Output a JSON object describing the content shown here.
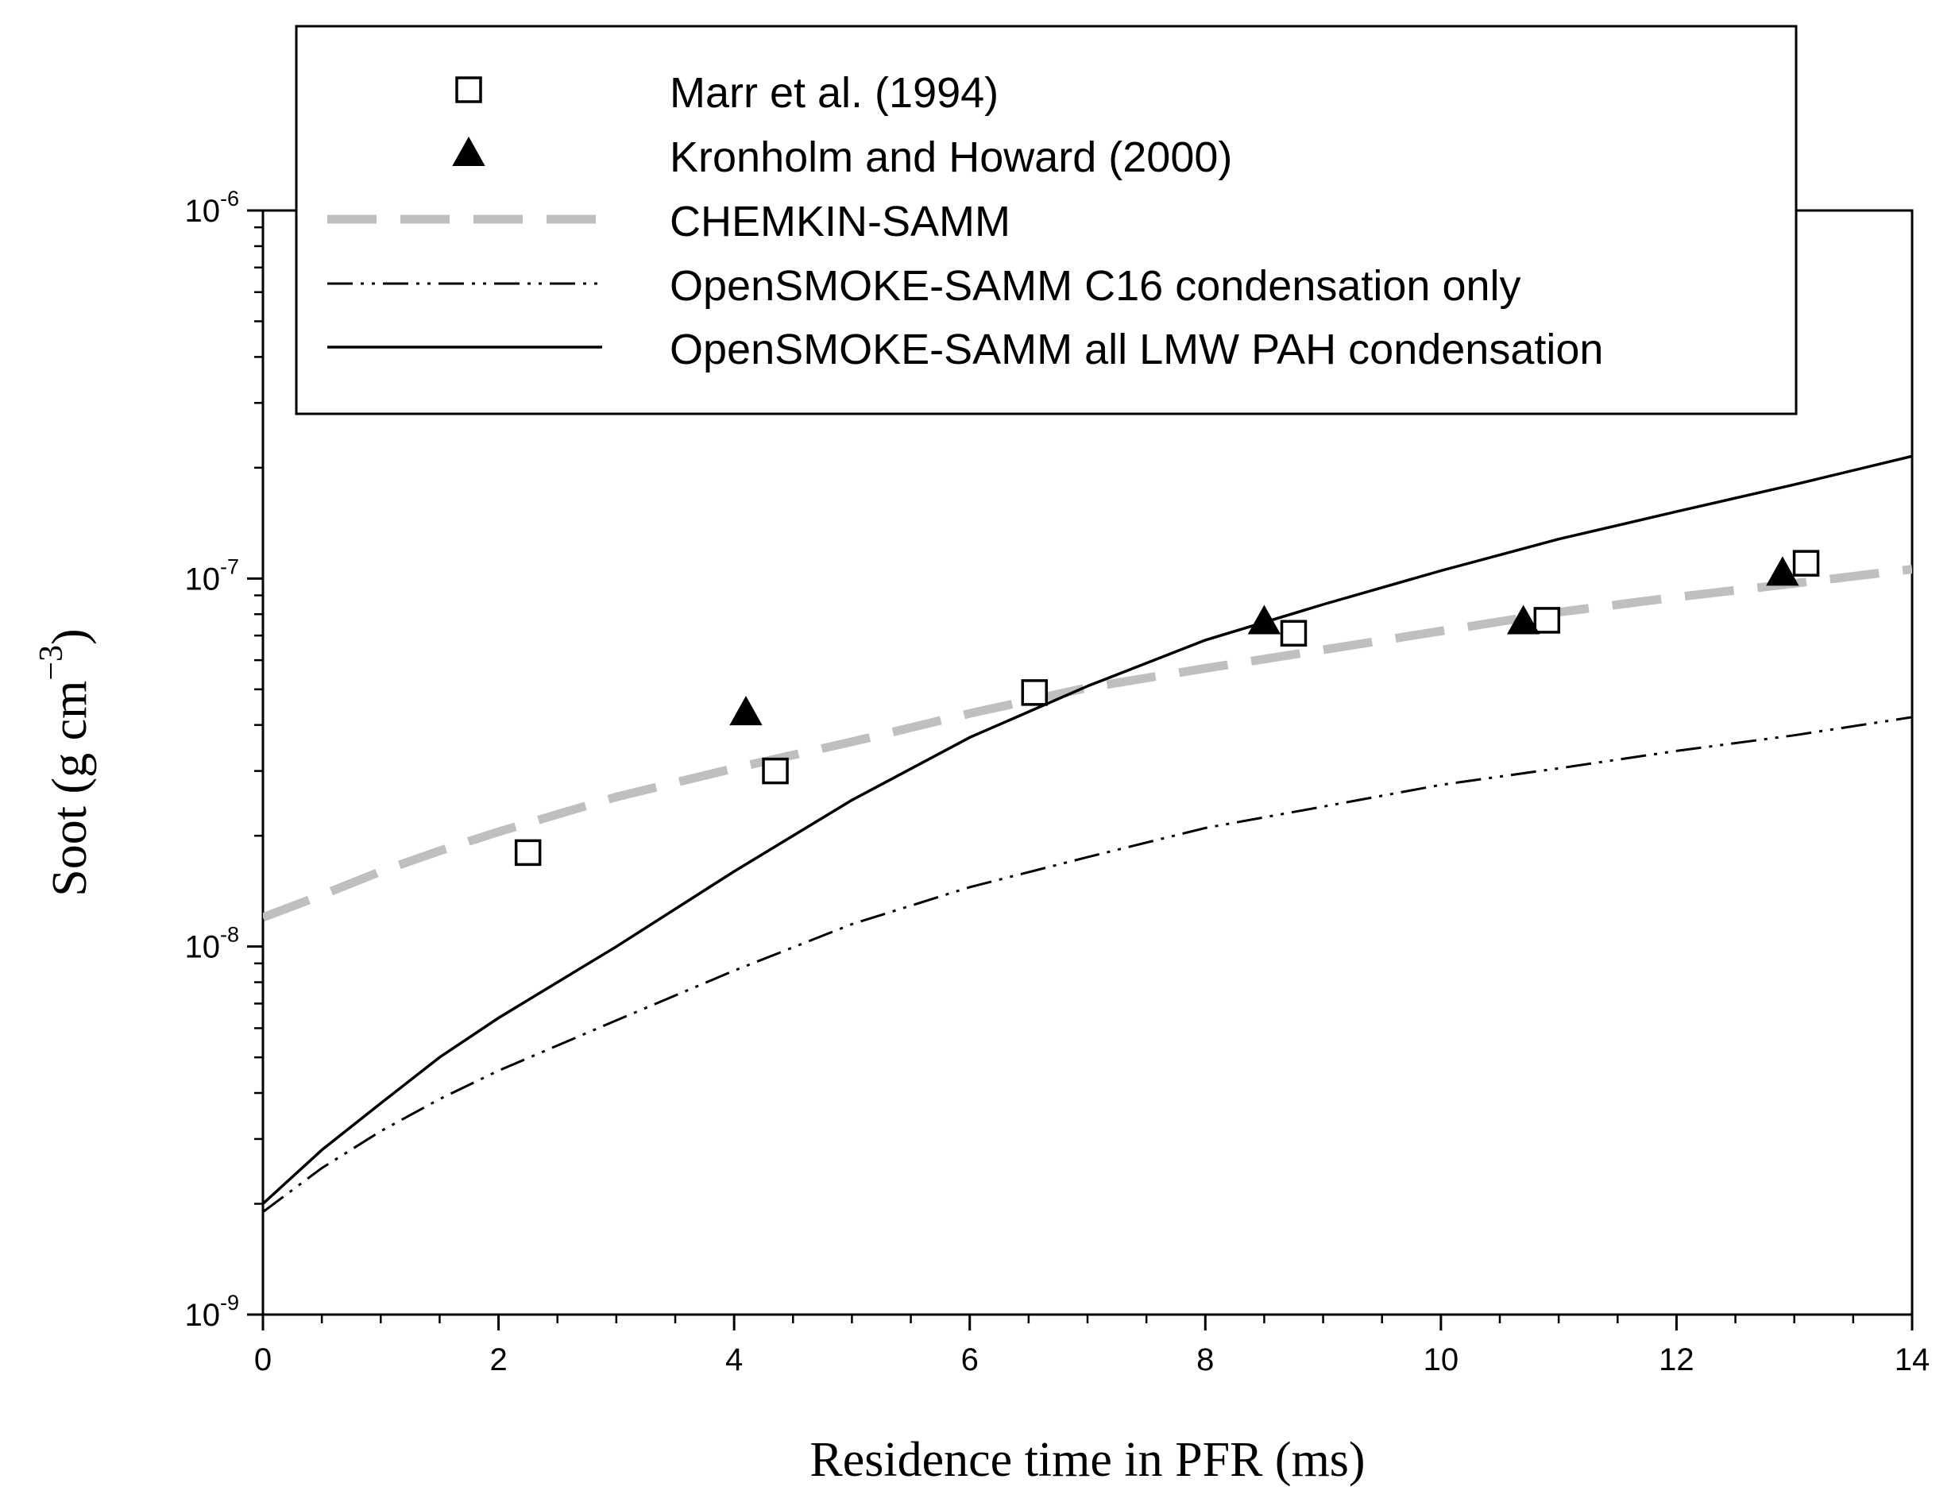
{
  "chart_data": {
    "type": "scatter",
    "xlabel": "Residence time in PFR (ms)",
    "ylabel": "Soot (g cm",
    "ylabel_exponent": "−3",
    "ylabel_close": ")",
    "xlim": [
      0,
      14
    ],
    "ylim": [
      1e-09,
      1e-06
    ],
    "yscale": "log",
    "x_ticks": [
      0,
      2,
      4,
      6,
      8,
      10,
      12,
      14
    ],
    "x_tick_labels": [
      "0",
      "2",
      "4",
      "6",
      "8",
      "10",
      "12",
      "14"
    ],
    "y_ticks": [
      1e-09,
      1e-08,
      1e-07,
      1e-06
    ],
    "y_tick_labels": [
      {
        "base": "10",
        "exp": "-9"
      },
      {
        "base": "10",
        "exp": "-8"
      },
      {
        "base": "10",
        "exp": "-7"
      },
      {
        "base": "10",
        "exp": "-6"
      }
    ],
    "legend_position": "top",
    "series": [
      {
        "name": "Marr et al. (1994)",
        "kind": "markers",
        "marker": "open-square",
        "color": "#000000",
        "x": [
          2.25,
          4.35,
          6.55,
          8.75,
          10.9,
          13.1
        ],
        "y": [
          1.8e-08,
          3e-08,
          4.9e-08,
          7.1e-08,
          7.7e-08,
          1.1e-07
        ]
      },
      {
        "name": "Kronholm and Howard (2000)",
        "kind": "markers",
        "marker": "filled-triangle",
        "color": "#000000",
        "x": [
          4.1,
          8.5,
          10.7,
          12.9
        ],
        "y": [
          4.3e-08,
          7.6e-08,
          7.6e-08,
          1.03e-07
        ]
      },
      {
        "name": "CHEMKIN-SAMM",
        "kind": "line",
        "line_style": "dashed",
        "color": "#bfbfbf",
        "x": [
          0,
          0.5,
          1,
          1.5,
          2,
          3,
          4,
          5,
          6,
          7,
          8,
          9,
          10,
          11,
          12,
          13,
          14
        ],
        "y": [
          1.2e-08,
          1.38e-08,
          1.6e-08,
          1.82e-08,
          2.05e-08,
          2.55e-08,
          3.05e-08,
          3.6e-08,
          4.3e-08,
          5.05e-08,
          5.7e-08,
          6.4e-08,
          7.2e-08,
          8.1e-08,
          8.9e-08,
          9.7e-08,
          1.06e-07
        ]
      },
      {
        "name": "OpenSMOKE-SAMM C16 condensation only",
        "kind": "line",
        "line_style": "dash-dot-dot",
        "color": "#000000",
        "x": [
          0,
          0.5,
          1,
          1.5,
          2,
          3,
          4,
          5,
          6,
          7,
          8,
          9,
          10,
          11,
          12,
          13,
          14
        ],
        "y": [
          1.9e-09,
          2.5e-09,
          3.15e-09,
          3.85e-09,
          4.6e-09,
          6.3e-09,
          8.6e-09,
          1.15e-08,
          1.45e-08,
          1.75e-08,
          2.1e-08,
          2.4e-08,
          2.75e-08,
          3.05e-08,
          3.4e-08,
          3.75e-08,
          4.2e-08
        ]
      },
      {
        "name": "OpenSMOKE-SAMM all LMW PAH condensation",
        "kind": "line",
        "line_style": "solid",
        "color": "#000000",
        "x": [
          0,
          0.5,
          1,
          1.5,
          2,
          3,
          4,
          5,
          6,
          7,
          8,
          9,
          10,
          11,
          12,
          13,
          14
        ],
        "y": [
          2e-09,
          2.8e-09,
          3.75e-09,
          5e-09,
          6.4e-09,
          1e-08,
          1.6e-08,
          2.5e-08,
          3.7e-08,
          5.1e-08,
          6.8e-08,
          8.5e-08,
          1.05e-07,
          1.28e-07,
          1.52e-07,
          1.8e-07,
          2.15e-07
        ]
      }
    ]
  }
}
